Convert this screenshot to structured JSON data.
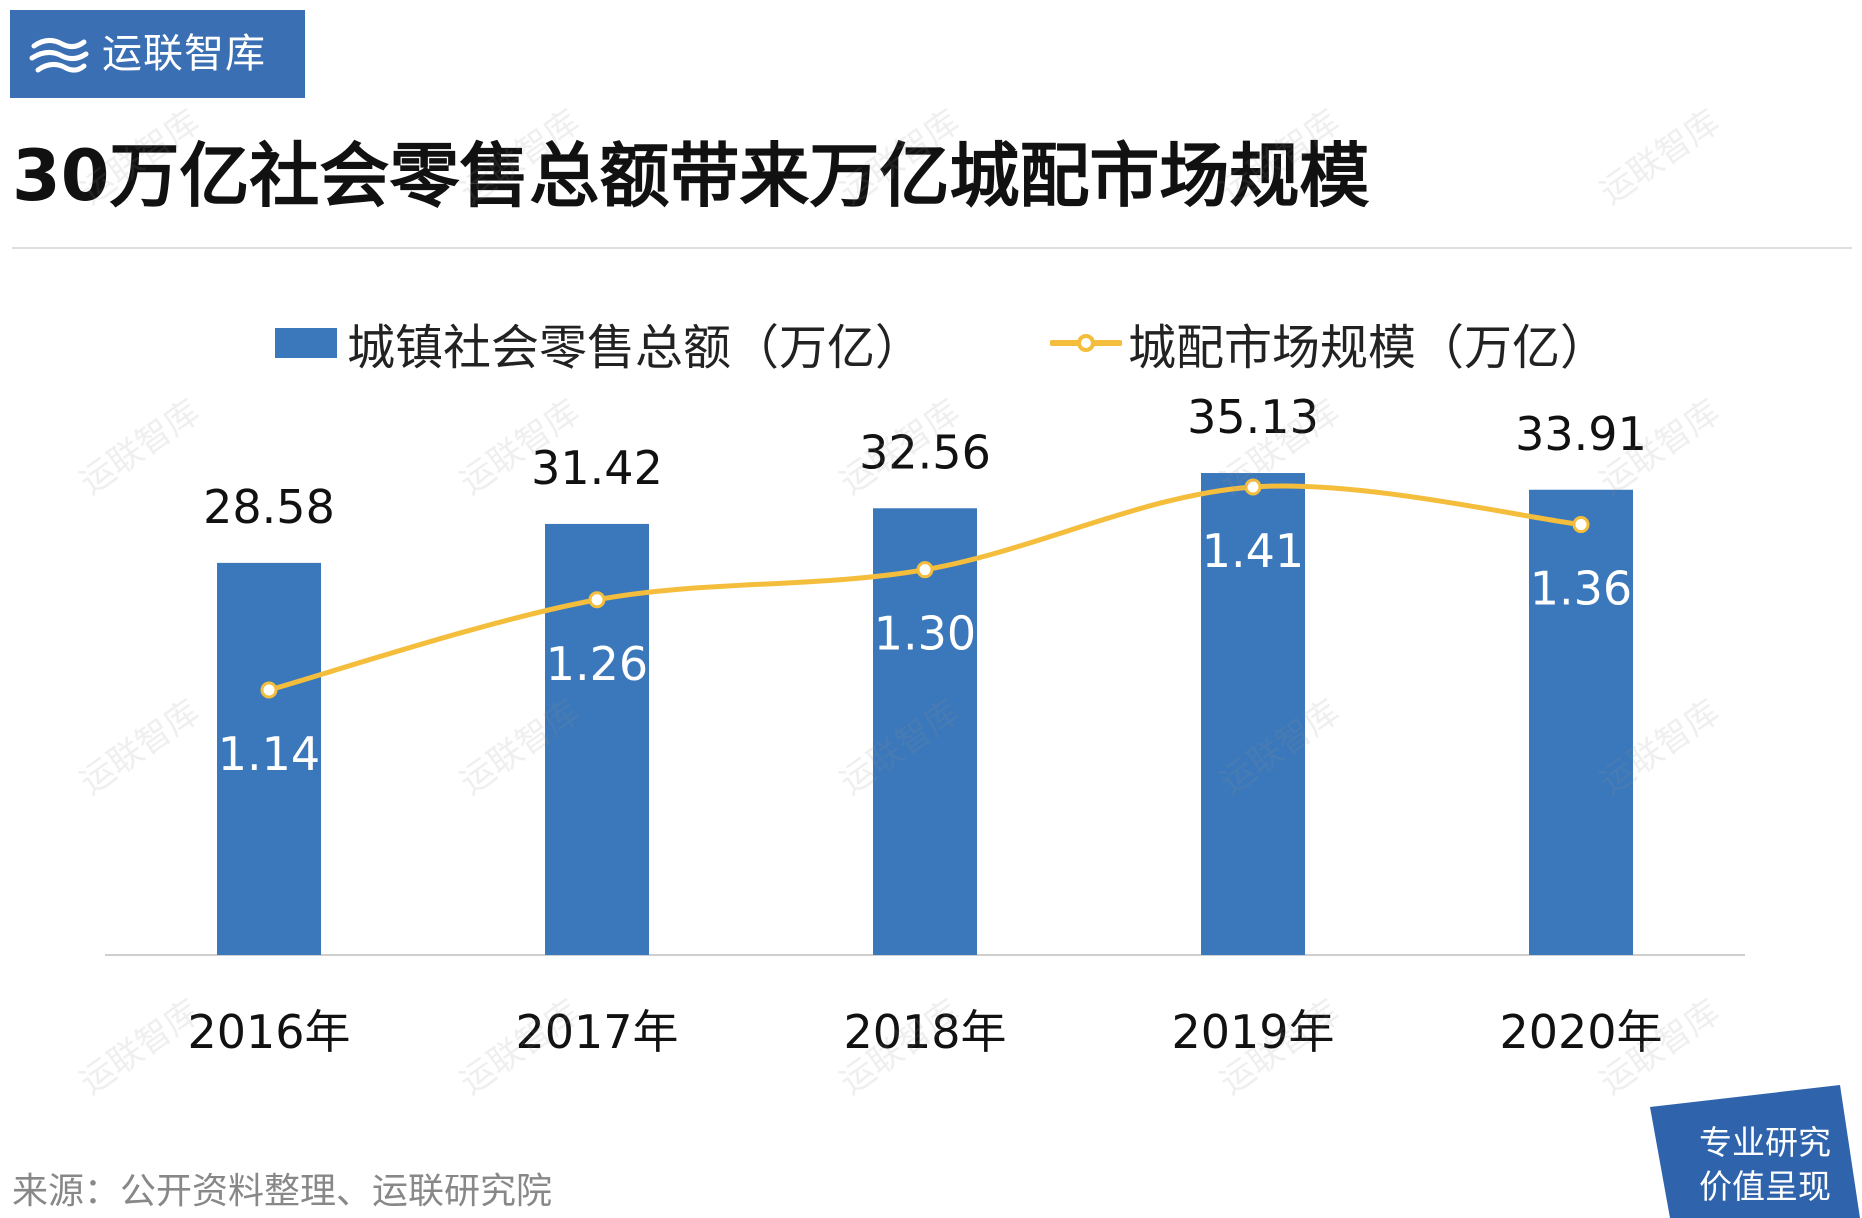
{
  "brand": {
    "name": "运联智库",
    "color": "#3b6fb3"
  },
  "title": "30万亿社会零售总额带来万亿城配市场规模",
  "legend": {
    "bar_label": "城镇社会零售总额（万亿）",
    "line_label": "城配市场规模（万亿）"
  },
  "source": "来源：公开资料整理、运联研究院",
  "slogan": {
    "line1": "专业研究",
    "line2": "价值呈现"
  },
  "watermark_text": "运联智库",
  "chart_data": {
    "type": "bar",
    "categories": [
      "2016年",
      "2017年",
      "2018年",
      "2019年",
      "2020年"
    ],
    "series": [
      {
        "name": "城镇社会零售总额（万亿）",
        "type": "bar",
        "values": [
          28.58,
          31.42,
          32.56,
          35.13,
          33.91
        ],
        "color": "#3b78bb"
      },
      {
        "name": "城配市场规模（万亿）",
        "type": "line",
        "values": [
          1.14,
          1.26,
          1.3,
          1.41,
          1.36
        ],
        "color": "#f4bd3c"
      }
    ],
    "title": "30万亿社会零售总额带来万亿城配市场规模",
    "xlabel": "",
    "ylabel": "",
    "grid": false,
    "legend_position": "top"
  }
}
